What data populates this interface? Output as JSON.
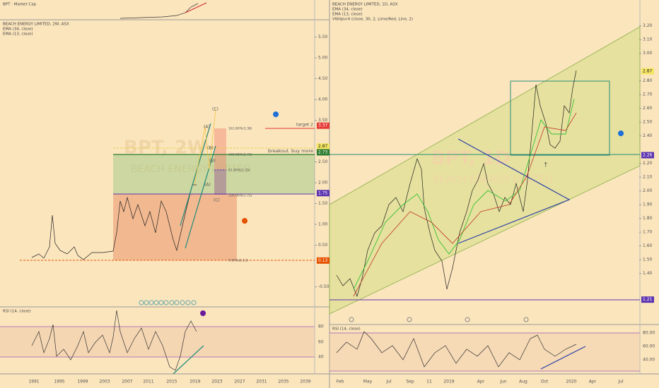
{
  "left_panel": {
    "market_cap_label": "BPT · Market Cap",
    "title": "BEACH ENERGY LIMITED, 2W, ASX",
    "indicators": [
      "EMA (34, close)",
      "EMA (13, close)"
    ],
    "watermark": "BPT, 2W",
    "watermark_sub": "BEACH ENERGY LIMITED",
    "price_ticks": [
      {
        "value": 5.5,
        "label": "5.50"
      },
      {
        "value": 5,
        "label": "5.00"
      },
      {
        "value": 4.5,
        "label": "4.50"
      },
      {
        "value": 4,
        "label": "4.00"
      },
      {
        "value": 3.5,
        "label": "3.50"
      },
      {
        "value": 2.5,
        "label": "2.50"
      },
      {
        "value": 2,
        "label": "2.00"
      },
      {
        "value": 1.5,
        "label": "1.50"
      },
      {
        "value": 1,
        "label": "1.00"
      },
      {
        "value": 0.5,
        "label": "0.50"
      },
      {
        "value": -0.5,
        "label": "-0.50"
      }
    ],
    "price_markers": [
      {
        "value": 3.37,
        "label": "3.37",
        "color": "#e53935"
      },
      {
        "value": 2.87,
        "label": "2.87",
        "color": "#f5e663"
      },
      {
        "value": 2.73,
        "label": "2.73",
        "color": "#2e7d32"
      },
      {
        "value": 1.75,
        "label": "1.75",
        "color": "#5e35b1"
      },
      {
        "value": 0.13,
        "label": "0.13",
        "color": "#e65100"
      }
    ],
    "target": "target 2",
    "breakout": "breakout. buy more",
    "fib_labels": [
      "161.80%(3.38)",
      "100.00%(2.73)",
      "61.80%(2.35)",
      "100.00%(1.75)",
      "0.00%(0.13)"
    ],
    "wave_labels": [
      "(C)",
      "(A)",
      "(B)",
      "(A)",
      "(B)",
      "(C)"
    ],
    "rsi_label": "RSI (14, close)",
    "rsi_ticks": [
      "80",
      "60",
      "40"
    ],
    "x_ticks": [
      "1991",
      "1995",
      "1999",
      "2003",
      "2007",
      "2011",
      "2015",
      "2019",
      "2023",
      "2027",
      "2031",
      "2035",
      "2039"
    ]
  },
  "right_panel": {
    "title": "BEACH ENERGY LIMITED, 1D, ASX",
    "indicators": [
      "EMA (34, close)",
      "EMA (13, close)",
      "VWdpvr4 (close, 30, 2, Lime/Red, Line, 2)"
    ],
    "watermark": "BPT, 1D",
    "watermark_sub": "BEACH ENERGY LIMITED",
    "price_ticks": [
      {
        "value": 3.2,
        "label": "3.20"
      },
      {
        "value": 3.1,
        "label": "3.10"
      },
      {
        "value": 3,
        "label": "3.00"
      },
      {
        "value": 2.8,
        "label": "2.80"
      },
      {
        "value": 2.7,
        "label": "2.70"
      },
      {
        "value": 2.6,
        "label": "2.60"
      },
      {
        "value": 2.5,
        "label": "2.50"
      },
      {
        "value": 2.4,
        "label": "2.40"
      },
      {
        "value": 2.2,
        "label": "2.20"
      },
      {
        "value": 2.1,
        "label": "2.10"
      },
      {
        "value": 2,
        "label": "2.00"
      },
      {
        "value": 1.9,
        "label": "1.90"
      },
      {
        "value": 1.8,
        "label": "1.80"
      },
      {
        "value": 1.7,
        "label": "1.70"
      },
      {
        "value": 1.6,
        "label": "1.60"
      },
      {
        "value": 1.5,
        "label": "1.50"
      },
      {
        "value": 1.4,
        "label": "1.40"
      }
    ],
    "price_markers": [
      {
        "value": 2.87,
        "label": "2.87",
        "color": "#f5e663"
      },
      {
        "value": 2.26,
        "label": "2.26",
        "color": "#5e35b1"
      },
      {
        "value": 1.21,
        "label": "1.21",
        "color": "#5e35b1"
      }
    ],
    "rsi_label": "RSI (14, close)",
    "rsi_ticks": [
      "80.00",
      "60.00",
      "40.00"
    ],
    "x_ticks": [
      "Feb",
      "May",
      "Jul",
      "Sep",
      "11",
      "2019",
      "Apr",
      "Jun",
      "Aug",
      "Oct",
      "2020",
      "Apr",
      "Jul"
    ]
  }
}
